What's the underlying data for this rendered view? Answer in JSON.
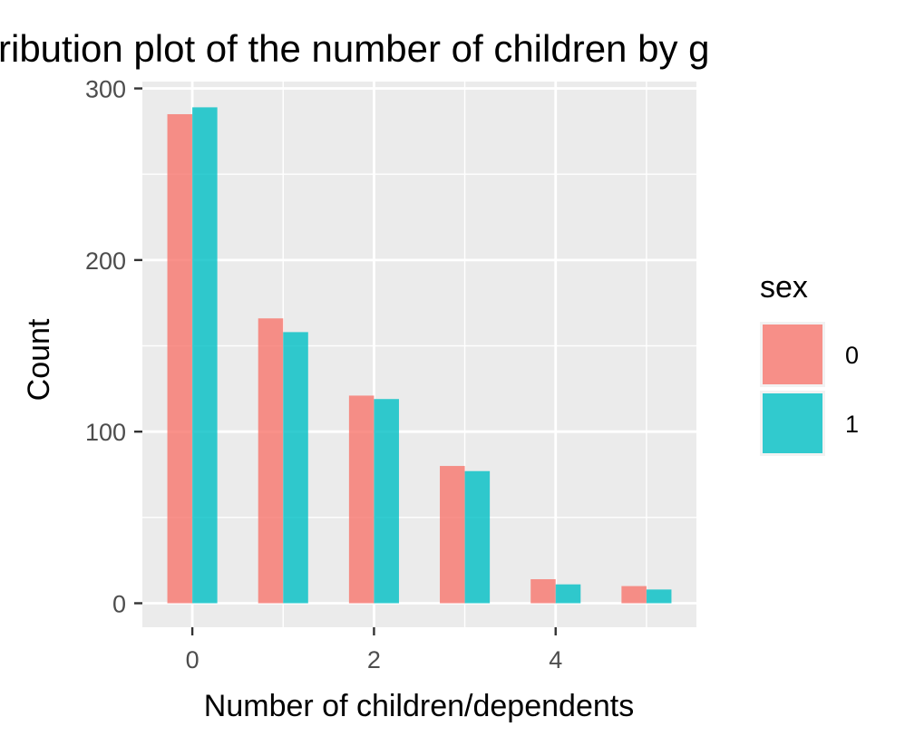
{
  "chart_data": {
    "type": "bar",
    "title": "ribution plot of the number of children by g",
    "xlabel": "Number of children/dependents",
    "ylabel": "Count",
    "x": [
      0,
      1,
      2,
      3,
      4,
      5
    ],
    "xlim": [
      -0.55,
      5.55
    ],
    "ylim": [
      -14,
      304
    ],
    "x_ticks": [
      0,
      2,
      4
    ],
    "y_ticks": [
      0,
      100,
      200,
      300
    ],
    "grid": true,
    "legend": {
      "title": "sex",
      "position": "right"
    },
    "series": [
      {
        "name": "0",
        "color": "#F8766D",
        "values": [
          285,
          166,
          121,
          80,
          14,
          10
        ]
      },
      {
        "name": "1",
        "color": "#00BFC4",
        "values": [
          289,
          158,
          119,
          77,
          11,
          8
        ]
      }
    ]
  }
}
